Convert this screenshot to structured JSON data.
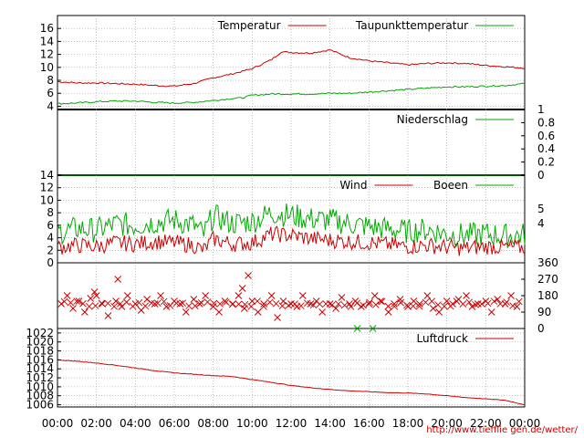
{
  "credit_url": "http://www.tiefflie gen.de/wetter/",
  "x_ticks": [
    "00:00",
    "02:00",
    "04:00",
    "06:00",
    "08:00",
    "10:00",
    "12:00",
    "14:00",
    "16:00",
    "18:00",
    "20:00",
    "22:00",
    "00:00"
  ],
  "colors": {
    "red": "#cc0000",
    "green": "#00aa00",
    "grid": "#999999"
  },
  "chart_data": [
    {
      "type": "line",
      "legend": [
        "Temperatur",
        "Taupunkttemperatur"
      ],
      "x_range_hours": [
        0,
        24
      ],
      "ylim": [
        3.5,
        18
      ],
      "y_ticks": [
        "4",
        "6",
        "8",
        "10",
        "12",
        "14",
        "16"
      ],
      "grid": true,
      "series": [
        {
          "name": "Temperatur",
          "x": [
            0,
            1,
            2,
            3,
            4,
            5,
            6,
            7,
            8,
            9,
            10,
            11,
            11.5,
            12,
            13,
            14,
            15,
            16,
            17,
            18,
            19,
            20,
            21,
            22,
            23,
            24
          ],
          "values": [
            7.8,
            7.6,
            7.6,
            7.5,
            7.4,
            7.2,
            7.1,
            7.5,
            8.4,
            9.0,
            9.8,
            11.2,
            12.4,
            12.3,
            12.2,
            12.7,
            11.5,
            11.0,
            10.7,
            10.4,
            10.6,
            10.7,
            10.6,
            10.3,
            10.1,
            9.9
          ]
        },
        {
          "name": "Taupunkttemperatur",
          "x": [
            0,
            1,
            2,
            3,
            4,
            5,
            6,
            7,
            8,
            9,
            9.5,
            10,
            11,
            12,
            13,
            14,
            15,
            16,
            17,
            18,
            19,
            20,
            21,
            22,
            23,
            24
          ],
          "values": [
            4.4,
            4.5,
            4.7,
            4.8,
            4.8,
            4.6,
            4.5,
            4.6,
            4.9,
            5.2,
            5.3,
            5.7,
            5.9,
            5.9,
            5.9,
            6.0,
            6.0,
            6.2,
            6.4,
            6.6,
            6.8,
            7.0,
            7.0,
            7.1,
            7.2,
            7.5
          ]
        }
      ]
    },
    {
      "type": "line",
      "legend": [
        "Niederschlag"
      ],
      "ylim": [
        0,
        1
      ],
      "y_ticks": [
        "0",
        "0.2",
        "0.4",
        "0.6",
        "0.8",
        "1"
      ],
      "series": [
        {
          "name": "Niederschlag",
          "x": [
            0,
            24
          ],
          "values": [
            0,
            0
          ]
        }
      ]
    },
    {
      "type": "line",
      "legend": [
        "Wind",
        "Boeen"
      ],
      "ylim": [
        0,
        14
      ],
      "y_ticks": [
        "0",
        "2",
        "4",
        "6",
        "8",
        "10",
        "12",
        "14"
      ],
      "y2_ticks": [
        "4",
        "5"
      ],
      "series": [
        {
          "name": "Wind",
          "x": [
            0,
            1,
            2,
            3,
            4,
            5,
            6,
            7,
            7.5,
            8,
            9,
            10,
            11,
            12,
            13,
            14,
            15,
            16,
            17,
            18,
            19,
            20,
            21,
            22,
            23,
            24
          ],
          "values": [
            2.5,
            2.8,
            2.6,
            3.2,
            3.0,
            3.4,
            3.2,
            2.8,
            2.0,
            3.8,
            3.0,
            3.2,
            4.6,
            4.4,
            3.9,
            3.6,
            3.4,
            3.2,
            2.9,
            2.6,
            2.8,
            2.5,
            2.3,
            2.6,
            2.5,
            2.4
          ]
        },
        {
          "name": "Boeen",
          "x": [
            0,
            1,
            2,
            3,
            4,
            5,
            6,
            7,
            7.5,
            8,
            9,
            10,
            11,
            12,
            13,
            14,
            15,
            16,
            17,
            18,
            19,
            20,
            21,
            22,
            23,
            24
          ],
          "values": [
            4.8,
            5.5,
            5.2,
            6.2,
            6.0,
            6.5,
            6.8,
            6.0,
            4.5,
            7.5,
            6.3,
            6.6,
            8.0,
            7.6,
            7.0,
            6.8,
            6.3,
            5.8,
            5.4,
            5.0,
            5.3,
            4.6,
            4.4,
            4.6,
            4.3,
            4.5
          ]
        }
      ]
    },
    {
      "type": "scatter",
      "ylim": [
        0,
        360
      ],
      "y_ticks": [
        "0",
        "90",
        "180",
        "270",
        "360"
      ],
      "series": [
        {
          "name": "",
          "x": [
            0.2,
            0.5,
            0.8,
            1.1,
            1.4,
            1.7,
            2.0,
            2.3,
            2.6,
            3.0,
            3.3,
            3.6,
            4.0,
            4.3,
            4.6,
            5.0,
            5.3,
            5.6,
            6.0,
            6.3,
            6.6,
            7.0,
            7.3,
            7.6,
            8.0,
            8.3,
            8.6,
            9.0,
            9.3,
            9.6,
            10.0,
            10.3,
            10.6,
            11.0,
            11.3,
            11.6,
            12.0,
            12.3,
            12.6,
            13.0,
            13.3,
            13.6,
            14.0,
            14.3,
            14.6,
            15.0,
            15.3,
            15.6,
            16.0,
            16.3,
            16.6,
            17.0,
            17.3,
            17.6,
            18.0,
            18.3,
            18.6,
            19.0,
            19.3,
            19.6,
            20.0,
            20.3,
            20.6,
            21.0,
            21.3,
            21.6,
            22.0,
            22.3,
            22.6,
            23.0,
            23.3,
            23.6,
            3.1,
            9.8,
            9.5,
            1.9,
            15.4,
            16.2
          ],
          "values": [
            135,
            180,
            110,
            150,
            90,
            165,
            180,
            135,
            70,
            150,
            120,
            180,
            135,
            100,
            160,
            135,
            180,
            120,
            150,
            135,
            90,
            160,
            135,
            180,
            120,
            90,
            150,
            135,
            180,
            110,
            150,
            90,
            135,
            180,
            60,
            150,
            135,
            120,
            180,
            135,
            150,
            90,
            135,
            110,
            170,
            135,
            150,
            120,
            135,
            180,
            150,
            90,
            135,
            160,
            120,
            150,
            135,
            180,
            110,
            90,
            150,
            135,
            160,
            180,
            120,
            135,
            150,
            90,
            160,
            135,
            180,
            120,
            270,
            290,
            220,
            200,
            0,
            0
          ]
        }
      ]
    },
    {
      "type": "line",
      "legend": [
        "Luftdruck"
      ],
      "ylim": [
        1005.5,
        1023
      ],
      "y_ticks": [
        "1006",
        "1008",
        "1010",
        "1012",
        "1014",
        "1016",
        "1018",
        "1020",
        "1022"
      ],
      "series": [
        {
          "name": "Luftdruck",
          "x": [
            0,
            1,
            2,
            3,
            4,
            5,
            6,
            7,
            8,
            9,
            10,
            11,
            12,
            13,
            14,
            15,
            16,
            17,
            18,
            19,
            20,
            21,
            22,
            23,
            24
          ],
          "values": [
            1016.0,
            1015.7,
            1015.3,
            1014.8,
            1014.2,
            1013.6,
            1013.1,
            1012.8,
            1012.5,
            1012.3,
            1011.6,
            1011.0,
            1010.3,
            1009.8,
            1009.4,
            1009.1,
            1008.9,
            1008.7,
            1008.6,
            1008.4,
            1008.0,
            1007.6,
            1007.3,
            1007.0,
            1006.0
          ]
        }
      ]
    }
  ]
}
